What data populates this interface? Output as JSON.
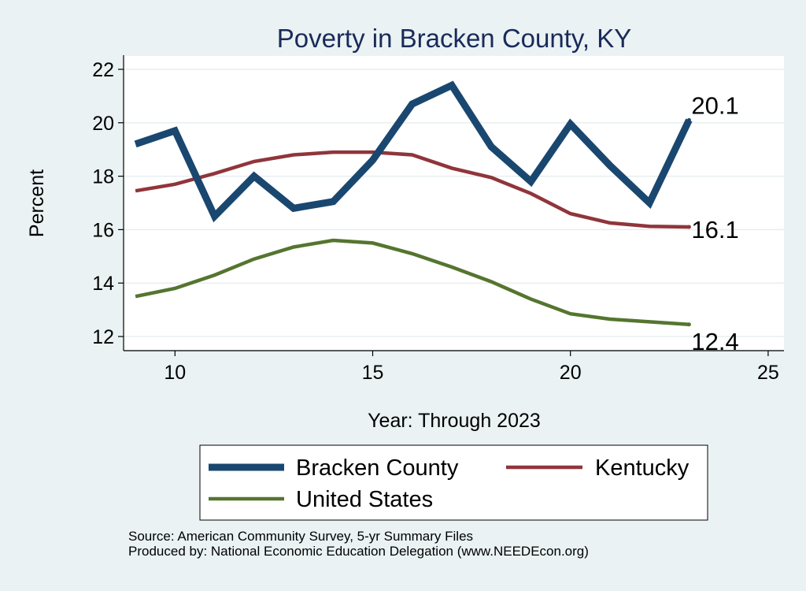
{
  "chart_data": {
    "type": "line",
    "title": "Poverty in Bracken County, KY",
    "xlabel": "Year: Through 2023",
    "ylabel": "Percent",
    "xlim": [
      8.7,
      25.4
    ],
    "ylim": [
      11.5,
      22.5
    ],
    "xticks": [
      10,
      15,
      20,
      25
    ],
    "yticks": [
      12,
      14,
      16,
      18,
      20,
      22
    ],
    "grid": true,
    "legend_position": "bottom",
    "series": [
      {
        "name": "Bracken County",
        "color": "#1a476f",
        "end_label": "20.1",
        "x": [
          9,
          10,
          11,
          12,
          13,
          14,
          15,
          16,
          17,
          18,
          19,
          20,
          21,
          22,
          23
        ],
        "y": [
          19.2,
          19.7,
          16.5,
          18.0,
          16.8,
          17.05,
          18.6,
          20.7,
          21.4,
          19.1,
          17.8,
          19.95,
          18.4,
          17.0,
          20.1
        ]
      },
      {
        "name": "Kentucky",
        "color": "#90353b",
        "end_label": "16.1",
        "x": [
          9,
          10,
          11,
          12,
          13,
          14,
          15,
          16,
          17,
          18,
          19,
          20,
          21,
          22,
          23
        ],
        "y": [
          17.45,
          17.7,
          18.1,
          18.55,
          18.8,
          18.9,
          18.9,
          18.8,
          18.3,
          17.95,
          17.35,
          16.6,
          16.25,
          16.12,
          16.1
        ]
      },
      {
        "name": "United States",
        "color": "#55752f",
        "end_label": "12.4",
        "x": [
          9,
          10,
          11,
          12,
          13,
          14,
          15,
          16,
          17,
          18,
          19,
          20,
          21,
          22,
          23
        ],
        "y": [
          13.5,
          13.8,
          14.3,
          14.9,
          15.35,
          15.6,
          15.5,
          15.1,
          14.6,
          14.05,
          13.4,
          12.85,
          12.65,
          12.55,
          12.45
        ]
      }
    ]
  },
  "footer": {
    "source": "Source: American Community Survey, 5-yr Summary Files",
    "produced_by": "Produced by: National Economic Education Delegation (www.NEEDEcon.org)"
  }
}
